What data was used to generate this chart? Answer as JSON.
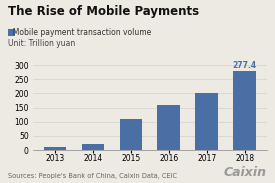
{
  "title": "The Rise of Mobile Payments",
  "legend_label": "Mobile payment transaction volume",
  "unit_label": "Unit: Trillion yuan",
  "categories": [
    "2013",
    "2014",
    "2015",
    "2016",
    "2017",
    "2018"
  ],
  "values": [
    10,
    22,
    108,
    158,
    202,
    277.4
  ],
  "bar_color": "#4a6fa5",
  "annotation_value": "277.4",
  "ylim": [
    0,
    310
  ],
  "yticks": [
    0,
    50,
    100,
    150,
    200,
    250,
    300
  ],
  "source_text": "Sources: People's Bank of China, Caixin Data, CEIC",
  "watermark_text": "Caixin",
  "background_color": "#ede9e3",
  "title_fontsize": 8.5,
  "axis_fontsize": 5.5,
  "legend_fontsize": 5.5,
  "source_fontsize": 4.8,
  "watermark_fontsize": 9
}
